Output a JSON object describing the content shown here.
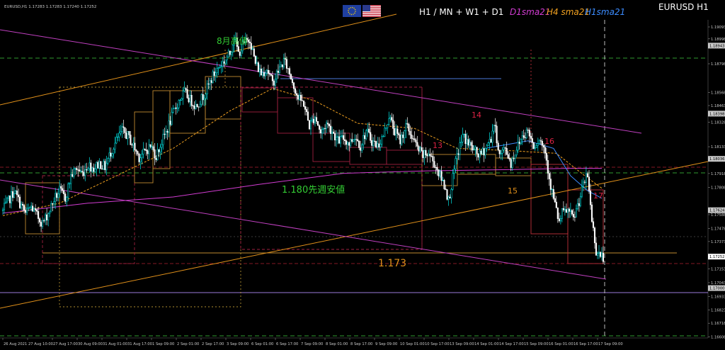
{
  "header": {
    "symbol_line": "EURUSD,H1  1.17283 1.17283 1.17240 1.17252",
    "tf_text": "H1 / MN + W1 + D1",
    "legend": [
      {
        "text": "D1sma21",
        "color": "#d23cd2"
      },
      {
        "text": "H4 sma21",
        "color": "#f0a020"
      },
      {
        "text": "H1sma21",
        "color": "#3c8cff"
      }
    ],
    "symbol_title": "EURUSD H1"
  },
  "flags": {
    "left": "eu-flag-icon",
    "right": "us-flag-icon"
  },
  "annotations": [
    {
      "id": "aug-high",
      "text": "8月高値",
      "color": "#33cc33"
    },
    {
      "id": "weekly-low",
      "text": "1.180先週安値",
      "color": "#33cc33"
    },
    {
      "id": "level-1173",
      "text": "1.173",
      "color": "#e0901a"
    },
    {
      "id": "n13",
      "text": "13",
      "color": "#dd2244"
    },
    {
      "id": "n14",
      "text": "14",
      "color": "#dd2244"
    },
    {
      "id": "n15",
      "text": "15",
      "color": "#e0901a"
    },
    {
      "id": "n16",
      "text": "16",
      "color": "#dd2244"
    },
    {
      "id": "n17",
      "text": "17",
      "color": "#dd2244"
    }
  ],
  "chart_data": {
    "type": "candlestick",
    "symbol": "EURUSD",
    "timeframe": "H1",
    "ylim": [
      1.166,
      1.1915
    ],
    "y_ticks": [
      1.19093,
      1.18998,
      1.18798,
      1.18568,
      1.18463,
      1.18328,
      1.18133,
      1.18028,
      1.17918,
      1.17808,
      1.17588,
      1.17478,
      1.17373,
      1.17263,
      1.17153,
      1.17043,
      1.16933,
      1.16823,
      1.16718,
      1.16608
    ],
    "y_tick_labels": [
      "1.19093",
      "1.18998",
      "1.18798",
      "1.18568",
      "1.18463",
      "1.18328",
      "1.18133",
      "1.18028",
      "1.17918",
      "1.17808",
      "1.17588",
      "1.17478",
      "1.17373",
      "1.17263",
      "1.17153",
      "1.17043",
      "1.16933",
      "1.16823",
      "1.16718",
      "1.16608"
    ],
    "y_top_label": "1.19441",
    "boxed_prices": [
      {
        "value": 1.18943,
        "label": "1.18943",
        "color": "#c8c8c8"
      },
      {
        "value": 1.18398,
        "label": "1.18398",
        "color": "#c8c8c8"
      },
      {
        "value": 1.18036,
        "label": "1.18036",
        "color": "#c8c8c8"
      },
      {
        "value": 1.17624,
        "label": "1.17624",
        "color": "#c8c8c8"
      },
      {
        "value": 1.17252,
        "label": "1.17252",
        "color": "#ffffff"
      },
      {
        "value": 1.17,
        "label": "1.17000",
        "color": "#c8c8c8"
      }
    ],
    "x_labels": [
      "26 Aug 2021",
      "27 Aug 10:00",
      "27 Aug 17:00",
      "30 Aug 09:00",
      "31 Aug 01:00",
      "31 Aug 17:00",
      "1 Sep 09:00",
      "2 Sep 01:00",
      "2 Sep 17:00",
      "3 Sep 09:00",
      "6 Sep 01:00",
      "6 Sep 17:00",
      "7 Sep 09:00",
      "8 Sep 01:00",
      "8 Sep 17:00",
      "9 Sep 09:00",
      "10 Sep 01:00",
      "10 Sep 17:00",
      "13 Sep 09:00",
      "14 Sep 01:00",
      "14 Sep 17:00",
      "15 Sep 09:00",
      "16 Sep 01:00",
      "16 Sep 17:00",
      "17 Sep 09:00"
    ],
    "close_path": [
      [
        0,
        1.1762
      ],
      [
        4,
        1.177
      ],
      [
        8,
        1.1778
      ],
      [
        12,
        1.1768
      ],
      [
        16,
        1.176
      ],
      [
        20,
        1.1765
      ],
      [
        24,
        1.1758
      ],
      [
        28,
        1.1752
      ],
      [
        32,
        1.176
      ],
      [
        36,
        1.1771
      ],
      [
        40,
        1.1778
      ],
      [
        44,
        1.1772
      ],
      [
        48,
        1.179
      ],
      [
        52,
        1.1796
      ],
      [
        56,
        1.1792
      ],
      [
        60,
        1.1799
      ],
      [
        64,
        1.1796
      ],
      [
        68,
        1.18
      ],
      [
        72,
        1.1797
      ],
      [
        76,
        1.1809
      ],
      [
        80,
        1.1818
      ],
      [
        84,
        1.1826
      ],
      [
        88,
        1.1822
      ],
      [
        92,
        1.1814
      ],
      [
        96,
        1.1805
      ],
      [
        100,
        1.1809
      ],
      [
        104,
        1.1814
      ],
      [
        108,
        1.1806
      ],
      [
        112,
        1.1817
      ],
      [
        116,
        1.1828
      ],
      [
        120,
        1.184
      ],
      [
        124,
        1.185
      ],
      [
        128,
        1.1857
      ],
      [
        132,
        1.1851
      ],
      [
        136,
        1.1846
      ],
      [
        140,
        1.1852
      ],
      [
        144,
        1.186
      ],
      [
        148,
        1.187
      ],
      [
        152,
        1.1877
      ],
      [
        156,
        1.1882
      ],
      [
        160,
        1.1888
      ],
      [
        163,
        1.1902
      ],
      [
        166,
        1.1888
      ],
      [
        170,
        1.1896
      ],
      [
        174,
        1.19
      ],
      [
        178,
        1.188
      ],
      [
        182,
        1.1872
      ],
      [
        186,
        1.1876
      ],
      [
        190,
        1.1864
      ],
      [
        194,
        1.1874
      ],
      [
        198,
        1.1882
      ],
      [
        200,
        1.1878
      ],
      [
        204,
        1.1866
      ],
      [
        208,
        1.1852
      ],
      [
        212,
        1.1848
      ],
      [
        216,
        1.183
      ],
      [
        220,
        1.1838
      ],
      [
        224,
        1.1824
      ],
      [
        228,
        1.1832
      ],
      [
        232,
        1.1826
      ],
      [
        236,
        1.1818
      ],
      [
        240,
        1.182
      ],
      [
        244,
        1.1816
      ],
      [
        248,
        1.1822
      ],
      [
        252,
        1.1814
      ],
      [
        256,
        1.1826
      ],
      [
        260,
        1.1818
      ],
      [
        264,
        1.1814
      ],
      [
        268,
        1.1822
      ],
      [
        272,
        1.1838
      ],
      [
        276,
        1.1826
      ],
      [
        280,
        1.1818
      ],
      [
        284,
        1.183
      ],
      [
        288,
        1.1822
      ],
      [
        292,
        1.1812
      ],
      [
        296,
        1.1806
      ],
      [
        300,
        1.1808
      ],
      [
        304,
        1.18
      ],
      [
        308,
        1.179
      ],
      [
        312,
        1.178
      ],
      [
        314,
        1.177
      ],
      [
        316,
        1.1782
      ],
      [
        320,
        1.1806
      ],
      [
        324,
        1.1822
      ],
      [
        328,
        1.1816
      ],
      [
        332,
        1.181
      ],
      [
        336,
        1.1806
      ],
      [
        340,
        1.1812
      ],
      [
        344,
        1.182
      ],
      [
        346,
        1.1832
      ],
      [
        348,
        1.182
      ],
      [
        350,
        1.1806
      ],
      [
        354,
        1.1812
      ],
      [
        358,
        1.18
      ],
      [
        362,
        1.1812
      ],
      [
        366,
        1.1822
      ],
      [
        370,
        1.1826
      ],
      [
        374,
        1.1814
      ],
      [
        378,
        1.182
      ],
      [
        382,
        1.181
      ],
      [
        386,
        1.1782
      ],
      [
        390,
        1.1762
      ],
      [
        392,
        1.1752
      ],
      [
        394,
        1.176
      ],
      [
        398,
        1.1762
      ],
      [
        402,
        1.1755
      ],
      [
        406,
        1.177
      ],
      [
        410,
        1.1786
      ],
      [
        412,
        1.179
      ],
      [
        415,
        1.1755
      ],
      [
        418,
        1.173
      ],
      [
        422,
        1.1725
      ]
    ],
    "series": [
      {
        "name": "D1sma21",
        "color": "#d23cd2",
        "path": [
          [
            0,
            1.176
          ],
          [
            60,
            1.1768
          ],
          [
            120,
            1.1773
          ],
          [
            180,
            1.1783
          ],
          [
            240,
            1.1792
          ],
          [
            300,
            1.1794
          ],
          [
            360,
            1.1795
          ],
          [
            400,
            1.1796
          ],
          [
            422,
            1.1796
          ]
        ]
      },
      {
        "name": "H4 sma21",
        "color": "#f0a020",
        "path": [
          [
            0,
            1.1758
          ],
          [
            40,
            1.1768
          ],
          [
            80,
            1.179
          ],
          [
            120,
            1.1812
          ],
          [
            160,
            1.1842
          ],
          [
            190,
            1.186
          ],
          [
            220,
            1.185
          ],
          [
            250,
            1.1832
          ],
          [
            290,
            1.1828
          ],
          [
            320,
            1.1812
          ],
          [
            360,
            1.181
          ],
          [
            390,
            1.1808
          ],
          [
            410,
            1.179
          ],
          [
            422,
            1.178
          ]
        ]
      },
      {
        "name": "H1sma21",
        "color": "#3c8cff",
        "path": [
          [
            340,
            1.1812
          ],
          [
            370,
            1.1818
          ],
          [
            388,
            1.1812
          ],
          [
            400,
            1.179
          ],
          [
            412,
            1.1778
          ],
          [
            422,
            1.1772
          ]
        ]
      }
    ],
    "colors": {
      "bull": "#00e6e6",
      "bear": "#ffffff",
      "bull_body": "#000000",
      "bear_body": "#ffffff"
    }
  }
}
